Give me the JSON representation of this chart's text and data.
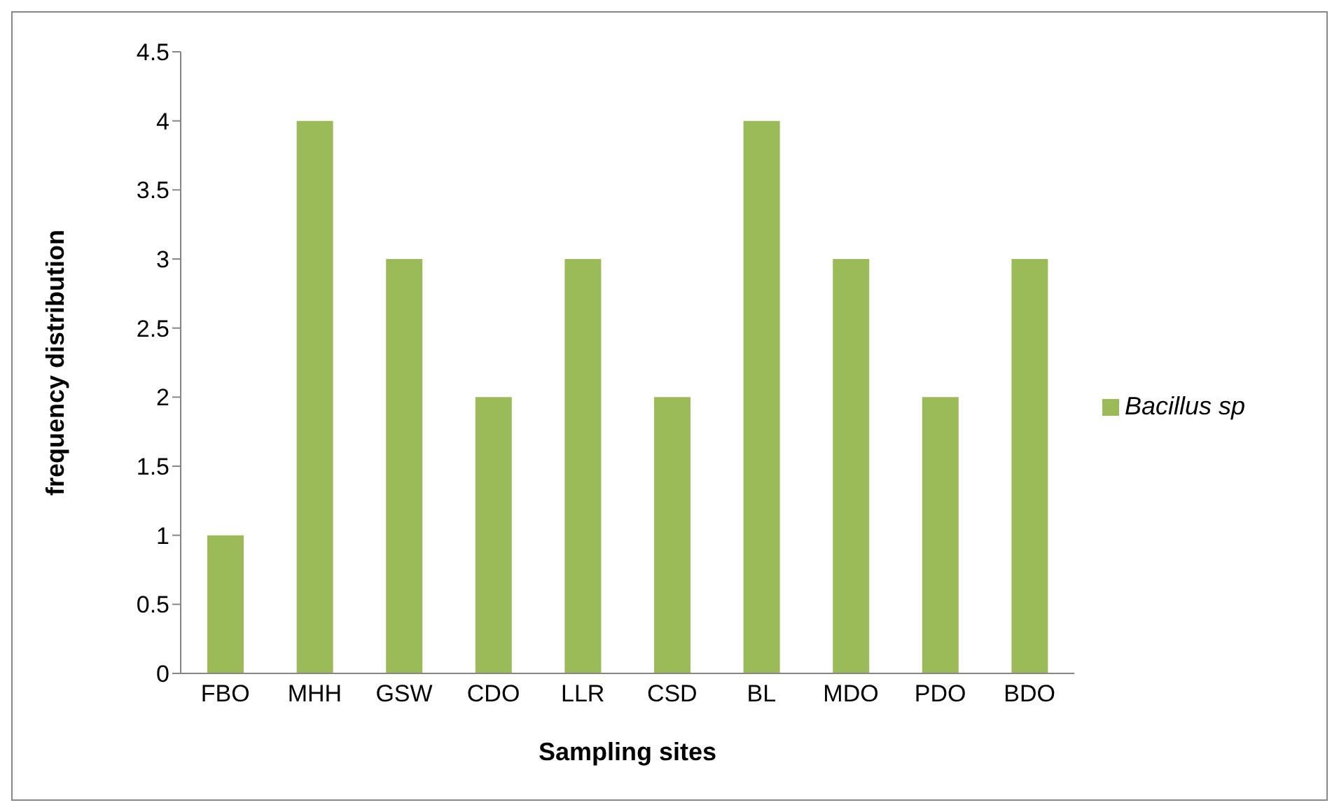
{
  "chart_data": {
    "type": "bar",
    "xlabel": "Sampling sites",
    "ylabel": "frequency distribution",
    "categories": [
      "FBO",
      "MHH",
      "GSW",
      "CDO",
      "LLR",
      "CSD",
      "BL",
      "MDO",
      "PDO",
      "BDO"
    ],
    "series": [
      {
        "name": "Bacillus sp",
        "color": "#9bbb59",
        "values": [
          1,
          4,
          3,
          2,
          3,
          2,
          4,
          3,
          2,
          3
        ]
      }
    ],
    "ylim": [
      0,
      4.5
    ],
    "yticks": [
      0,
      0.5,
      1,
      1.5,
      2,
      2.5,
      3,
      3.5,
      4,
      4.5
    ],
    "grid": false,
    "legend": "right"
  }
}
